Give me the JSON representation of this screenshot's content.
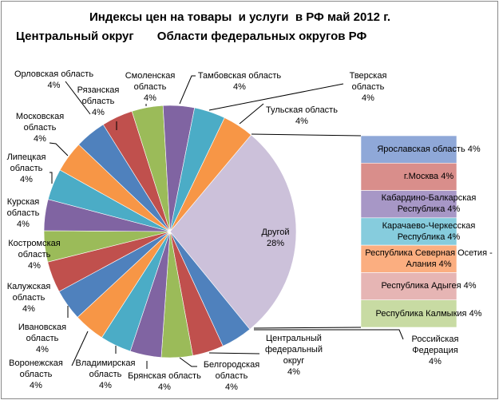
{
  "chart_data": {
    "type": "pie",
    "subtype": "bar-of-pie",
    "title_line1": "Индексы цен на товары  и услуги  в РФ май 2012 г.",
    "title_line2": "Центральный округ       Области федеральных округов РФ",
    "pie_slices": [
      {
        "label": "Российская Федерация",
        "value": 4,
        "value_label": "4%",
        "color": "#4F81BD"
      },
      {
        "label": "Центральный федеральный округ",
        "value": 4,
        "value_label": "4%",
        "color": "#C0504D"
      },
      {
        "label": "Белгородская область",
        "value": 4,
        "value_label": "4%",
        "color": "#9BBB59"
      },
      {
        "label": "Брянская область",
        "value": 4,
        "value_label": "4%",
        "color": "#8064A2"
      },
      {
        "label": "Владимирская область",
        "value": 4,
        "value_label": "4%",
        "color": "#4BACC6"
      },
      {
        "label": "Воронежская область",
        "value": 4,
        "value_label": "4%",
        "color": "#F79646"
      },
      {
        "label": "Ивановская область",
        "value": 4,
        "value_label": "4%",
        "color": "#4F81BD"
      },
      {
        "label": "Калужская область",
        "value": 4,
        "value_label": "4%",
        "color": "#C0504D"
      },
      {
        "label": "Костромская область",
        "value": 4,
        "value_label": "4%",
        "color": "#9BBB59"
      },
      {
        "label": "Курская область",
        "value": 4,
        "value_label": "4%",
        "color": "#8064A2"
      },
      {
        "label": "Липецкая область",
        "value": 4,
        "value_label": "4%",
        "color": "#4BACC6"
      },
      {
        "label": "Московская область",
        "value": 4,
        "value_label": "4%",
        "color": "#F79646"
      },
      {
        "label": "Орловская область",
        "value": 4,
        "value_label": "4%",
        "color": "#4F81BD"
      },
      {
        "label": "Рязанская область",
        "value": 4,
        "value_label": "4%",
        "color": "#C0504D"
      },
      {
        "label": "Смоленская область",
        "value": 4,
        "value_label": "4%",
        "color": "#9BBB59"
      },
      {
        "label": "Тамбовская область",
        "value": 4,
        "value_label": "4%",
        "color": "#8064A2"
      },
      {
        "label": "Тверская область",
        "value": 4,
        "value_label": "4%",
        "color": "#4BACC6"
      },
      {
        "label": "Тульская область",
        "value": 4,
        "value_label": "4%",
        "color": "#F79646"
      }
    ],
    "other": {
      "label": "Другой",
      "value": 28,
      "value_label": "28%",
      "color": "#CCC1DA"
    },
    "bar_slices": [
      {
        "label": "Ярославская область",
        "value": 4,
        "value_label": "4%",
        "color": "#8FA8D8"
      },
      {
        "label": "г.Москва",
        "value": 4,
        "value_label": "4%",
        "color": "#D98E8B"
      },
      {
        "label": "Кабардино-Балкарская Республика",
        "value": 4,
        "value_label": "4%",
        "color": "#A797C6"
      },
      {
        "label": "Карачаево-Черкесская Республика",
        "value": 4,
        "value_label": "4%",
        "color": "#86CCDD"
      },
      {
        "label": "Республика Северная Осетия - Алания",
        "value": 4,
        "value_label": "4%",
        "color": "#FBAE80"
      },
      {
        "label": "Республика Адыгея",
        "value": 4,
        "value_label": "4%",
        "color": "#E6B5B4"
      },
      {
        "label": "Республика Калмыкия",
        "value": 4,
        "value_label": "4%",
        "color": "#C8DBA3"
      }
    ]
  }
}
